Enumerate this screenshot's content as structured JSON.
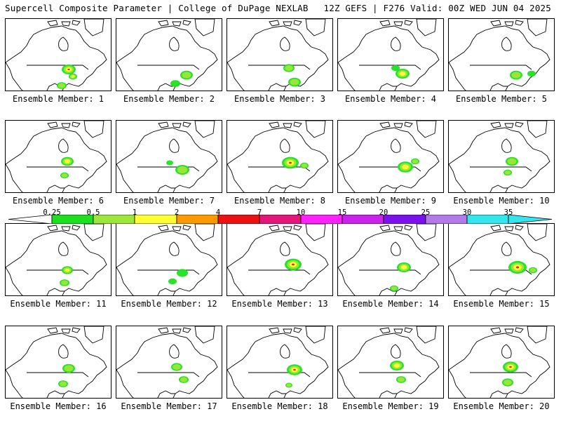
{
  "header": {
    "title": "Supercell Composite Parameter | College of DuPage NEXLAB",
    "valid": "12Z GEFS | F276 Valid: 00Z WED JUN 04 2025"
  },
  "colorbar": {
    "ticks": [
      "0.25",
      "0.5",
      "1",
      "2",
      "4",
      "7",
      "10",
      "15",
      "20",
      "25",
      "30",
      "35"
    ],
    "colors": [
      "#ffffff",
      "#1fe01f",
      "#9ee63a",
      "#ffff33",
      "#ff9900",
      "#ee1111",
      "#e4167a",
      "#ff22ff",
      "#cc22ee",
      "#7a11ee",
      "#b17ae8",
      "#33e6ee"
    ]
  },
  "members": [
    {
      "label": "Ensemble Member: 1",
      "blobs": [
        {
          "x": 90,
          "y": 72,
          "r": 10,
          "lv": 3
        },
        {
          "x": 96,
          "y": 82,
          "r": 6,
          "lv": 2
        },
        {
          "x": 80,
          "y": 95,
          "r": 7,
          "lv": 1
        }
      ]
    },
    {
      "label": "Ensemble Member: 2",
      "blobs": [
        {
          "x": 100,
          "y": 80,
          "r": 9,
          "lv": 1
        },
        {
          "x": 84,
          "y": 92,
          "r": 7,
          "lv": 0
        }
      ]
    },
    {
      "label": "Ensemble Member: 3",
      "blobs": [
        {
          "x": 88,
          "y": 70,
          "r": 8,
          "lv": 1
        },
        {
          "x": 96,
          "y": 90,
          "r": 9,
          "lv": 1
        }
      ]
    },
    {
      "label": "Ensemble Member: 4",
      "blobs": [
        {
          "x": 92,
          "y": 78,
          "r": 10,
          "lv": 2
        },
        {
          "x": 82,
          "y": 70,
          "r": 6,
          "lv": 0
        }
      ]
    },
    {
      "label": "Ensemble Member: 5",
      "blobs": [
        {
          "x": 96,
          "y": 80,
          "r": 9,
          "lv": 1
        },
        {
          "x": 118,
          "y": 78,
          "r": 6,
          "lv": 0
        }
      ]
    },
    {
      "label": "Ensemble Member: 6",
      "blobs": [
        {
          "x": 88,
          "y": 58,
          "r": 9,
          "lv": 2
        },
        {
          "x": 84,
          "y": 78,
          "r": 6,
          "lv": 1
        }
      ]
    },
    {
      "label": "Ensemble Member: 7",
      "blobs": [
        {
          "x": 94,
          "y": 70,
          "r": 10,
          "lv": 1
        },
        {
          "x": 76,
          "y": 60,
          "r": 5,
          "lv": 0
        }
      ]
    },
    {
      "label": "Ensemble Member: 8",
      "blobs": [
        {
          "x": 90,
          "y": 60,
          "r": 12,
          "lv": 3
        },
        {
          "x": 110,
          "y": 64,
          "r": 6,
          "lv": 1
        }
      ]
    },
    {
      "label": "Ensemble Member: 9",
      "blobs": [
        {
          "x": 96,
          "y": 66,
          "r": 11,
          "lv": 2
        },
        {
          "x": 110,
          "y": 58,
          "r": 6,
          "lv": 1
        }
      ]
    },
    {
      "label": "Ensemble Member: 10",
      "blobs": [
        {
          "x": 90,
          "y": 58,
          "r": 9,
          "lv": 1
        },
        {
          "x": 84,
          "y": 74,
          "r": 6,
          "lv": 1
        }
      ]
    },
    {
      "label": "Ensemble Member: 11",
      "blobs": [
        {
          "x": 88,
          "y": 66,
          "r": 8,
          "lv": 2
        },
        {
          "x": 84,
          "y": 84,
          "r": 7,
          "lv": 1
        }
      ]
    },
    {
      "label": "Ensemble Member: 12",
      "blobs": [
        {
          "x": 94,
          "y": 70,
          "r": 8,
          "lv": 0
        },
        {
          "x": 80,
          "y": 82,
          "r": 6,
          "lv": 0
        }
      ]
    },
    {
      "label": "Ensemble Member: 13",
      "blobs": [
        {
          "x": 94,
          "y": 58,
          "r": 12,
          "lv": 3
        }
      ]
    },
    {
      "label": "Ensemble Member: 14",
      "blobs": [
        {
          "x": 94,
          "y": 62,
          "r": 10,
          "lv": 2
        },
        {
          "x": 80,
          "y": 92,
          "r": 6,
          "lv": 1
        }
      ]
    },
    {
      "label": "Ensemble Member: 15",
      "blobs": [
        {
          "x": 98,
          "y": 62,
          "r": 13,
          "lv": 3
        },
        {
          "x": 120,
          "y": 66,
          "r": 6,
          "lv": 1
        }
      ]
    },
    {
      "label": "Ensemble Member: 16",
      "blobs": [
        {
          "x": 90,
          "y": 60,
          "r": 9,
          "lv": 1
        },
        {
          "x": 82,
          "y": 82,
          "r": 7,
          "lv": 1
        }
      ]
    },
    {
      "label": "Ensemble Member: 17",
      "blobs": [
        {
          "x": 86,
          "y": 58,
          "r": 8,
          "lv": 1
        },
        {
          "x": 96,
          "y": 76,
          "r": 7,
          "lv": 1
        }
      ]
    },
    {
      "label": "Ensemble Member: 18",
      "blobs": [
        {
          "x": 96,
          "y": 62,
          "r": 11,
          "lv": 3
        },
        {
          "x": 88,
          "y": 84,
          "r": 5,
          "lv": 1
        }
      ]
    },
    {
      "label": "Ensemble Member: 19",
      "blobs": [
        {
          "x": 84,
          "y": 56,
          "r": 10,
          "lv": 2
        },
        {
          "x": 90,
          "y": 76,
          "r": 7,
          "lv": 1
        }
      ]
    },
    {
      "label": "Ensemble Member: 20",
      "blobs": [
        {
          "x": 88,
          "y": 58,
          "r": 11,
          "lv": 3
        },
        {
          "x": 84,
          "y": 80,
          "r": 8,
          "lv": 1
        }
      ]
    }
  ]
}
